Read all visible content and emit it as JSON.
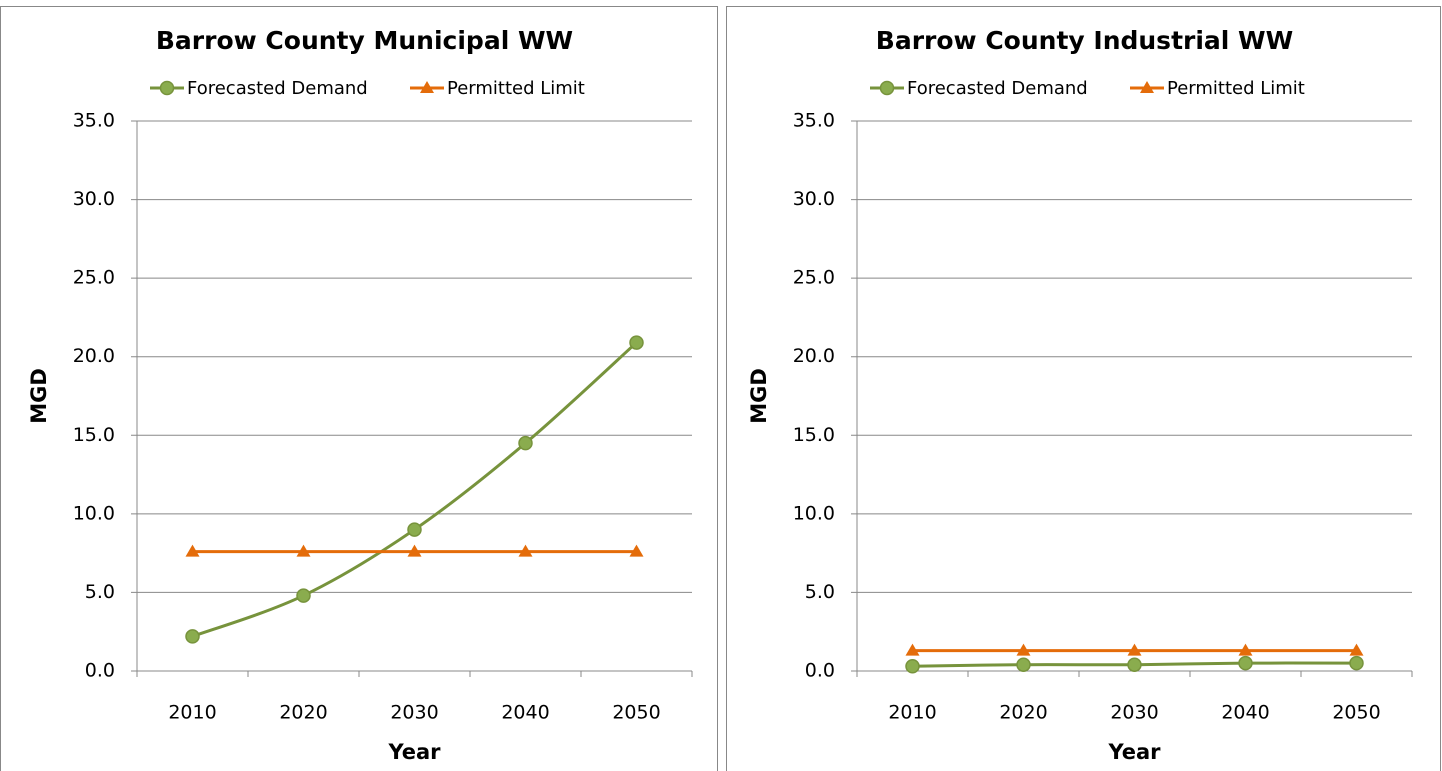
{
  "chart_data": [
    {
      "type": "line",
      "title": "Barrow County Municipal WW",
      "x_label": "Year",
      "y_label": "MGD",
      "categories": [
        "2010",
        "2020",
        "2030",
        "2040",
        "2050"
      ],
      "series": [
        {
          "name": "Forecasted Demand",
          "color": "#77933c",
          "marker": "circle",
          "values": [
            2.2,
            4.8,
            9.0,
            14.5,
            20.9
          ]
        },
        {
          "name": "Permitted Limit",
          "color": "#e46c0a",
          "marker": "triangle",
          "values": [
            7.6,
            7.6,
            7.6,
            7.6,
            7.6
          ]
        }
      ],
      "ylim": [
        0,
        35
      ],
      "yticks": [
        {
          "value": 0,
          "label": "0.0"
        },
        {
          "value": 5,
          "label": "5.0"
        },
        {
          "value": 10,
          "label": "10.0"
        },
        {
          "value": 15,
          "label": "15.0"
        },
        {
          "value": 20,
          "label": "20.0"
        },
        {
          "value": 25,
          "label": "25.0"
        },
        {
          "value": 30,
          "label": "30.0"
        },
        {
          "value": 35,
          "label": "35.0"
        }
      ],
      "grid": true,
      "smooth": true,
      "legend": "top"
    },
    {
      "type": "line",
      "title": "Barrow County Industrial WW",
      "x_label": "Year",
      "y_label": "MGD",
      "categories": [
        "2010",
        "2020",
        "2030",
        "2040",
        "2050"
      ],
      "series": [
        {
          "name": "Forecasted Demand",
          "color": "#77933c",
          "marker": "circle",
          "values": [
            0.3,
            0.4,
            0.4,
            0.5,
            0.5
          ]
        },
        {
          "name": "Permitted Limit",
          "color": "#e46c0a",
          "marker": "triangle",
          "values": [
            1.3,
            1.3,
            1.3,
            1.3,
            1.3
          ]
        }
      ],
      "ylim": [
        0,
        35
      ],
      "yticks": [
        {
          "value": 0,
          "label": "0.0"
        },
        {
          "value": 5,
          "label": "5.0"
        },
        {
          "value": 10,
          "label": "10.0"
        },
        {
          "value": 15,
          "label": "15.0"
        },
        {
          "value": 20,
          "label": "20.0"
        },
        {
          "value": 25,
          "label": "25.0"
        },
        {
          "value": 30,
          "label": "30.0"
        },
        {
          "value": 35,
          "label": "35.0"
        }
      ],
      "grid": true,
      "smooth": true,
      "legend": "top"
    }
  ]
}
